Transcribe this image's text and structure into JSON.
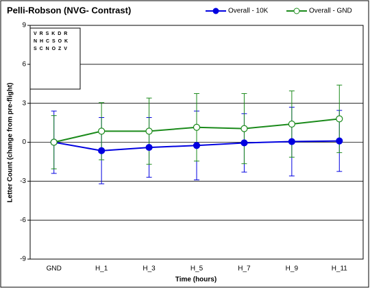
{
  "chart_data": {
    "type": "line",
    "title": "Pelli-Robson (NVG- Contrast)",
    "x_label": "Time (hours)",
    "y_label": "Letter Count (change from pre-flight)",
    "categories": [
      "GND",
      "H_1",
      "H_3",
      "H_5",
      "H_7",
      "H_9",
      "H_11"
    ],
    "series": [
      {
        "name": "Overall - 10K",
        "color": "#0000e0",
        "marker": "filled",
        "values": [
          0,
          -0.65,
          -0.4,
          -0.25,
          -0.05,
          0.05,
          0.1
        ],
        "errors": [
          2.4,
          2.55,
          2.3,
          2.65,
          2.25,
          2.65,
          2.35
        ]
      },
      {
        "name": "Overall - GND",
        "color": "#1a8a1a",
        "marker": "open",
        "values": [
          0,
          0.85,
          0.85,
          1.15,
          1.05,
          1.4,
          1.8
        ],
        "errors": [
          2.05,
          2.2,
          2.55,
          2.6,
          2.7,
          2.55,
          2.6
        ]
      }
    ],
    "ylim": [
      -9,
      9
    ],
    "yticks": [
      -9,
      -6,
      -3,
      0,
      3,
      6,
      9
    ],
    "grid": true,
    "legend": "top-right",
    "inset_rows": [
      "V R S K D R",
      "N H C S O K",
      "S C N O Z V"
    ]
  }
}
